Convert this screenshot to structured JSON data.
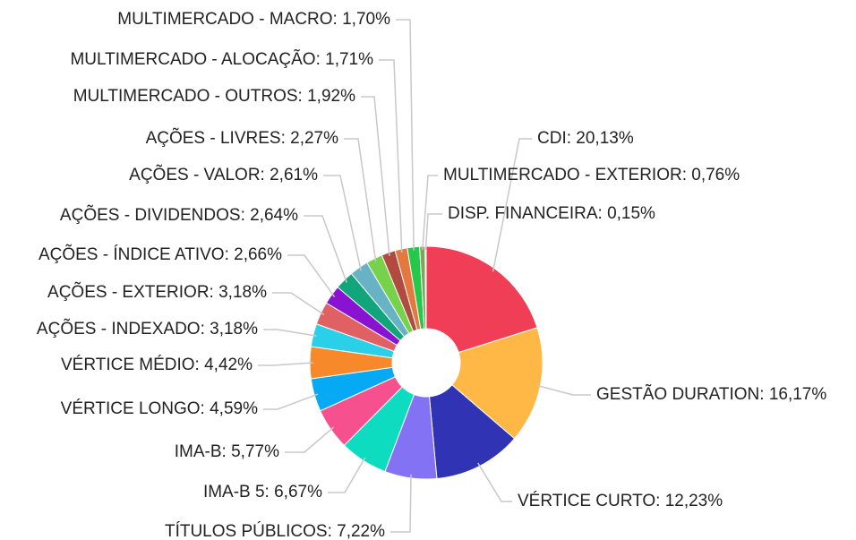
{
  "chart_data": {
    "type": "pie",
    "donut": true,
    "values": [
      20.13,
      16.17,
      12.23,
      7.22,
      6.67,
      5.77,
      4.59,
      4.42,
      3.18,
      3.18,
      2.66,
      2.64,
      2.61,
      2.27,
      1.92,
      1.71,
      1.7,
      0.76,
      0.15
    ],
    "value_labels": [
      "CDI: 20,13%",
      "GESTÃO DURATION: 16,17%",
      "VÉRTICE CURTO: 12,23%",
      "TÍTULOS PÚBLICOS: 7,22%",
      "IMA-B 5: 6,67%",
      "IMA-B: 5,77%",
      "VÉRTICE LONGO: 4,59%",
      "VÉRTICE MÉDIO: 4,42%",
      "AÇÕES - INDEXADO: 3,18%",
      "AÇÕES - EXTERIOR: 3,18%",
      "AÇÕES - ÍNDICE ATIVO: 2,66%",
      "AÇÕES - DIVIDENDOS: 2,64%",
      "AÇÕES - VALOR: 2,61%",
      "AÇÕES - LIVRES: 2,27%",
      "MULTIMERCADO - OUTROS: 1,92%",
      "MULTIMERCADO - ALOCAÇÃO: 1,71%",
      "MULTIMERCADO - MACRO: 1,70%",
      "MULTIMERCADO - EXTERIOR: 0,76%",
      "DISP. FINANCEIRA: 0,15%"
    ],
    "colors": [
      "#ef3e55",
      "#ffb845",
      "#3033b3",
      "#8472f5",
      "#0ddcc0",
      "#f7508f",
      "#06aaf4",
      "#f7892a",
      "#2ad0e8",
      "#e06064",
      "#8a12d2",
      "#10a57b",
      "#67b2c4",
      "#75d24a",
      "#b24b3f",
      "#e4793f",
      "#25c84a",
      "#7aa85a",
      "#8bd66a"
    ]
  }
}
